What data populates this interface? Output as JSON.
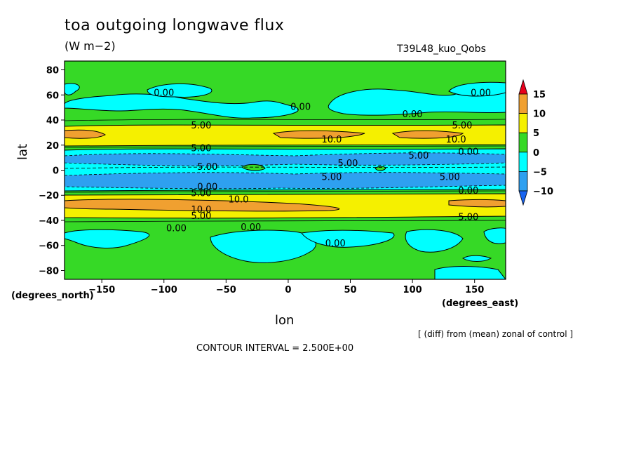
{
  "chart_data": {
    "type": "contour",
    "title": "toa outgoing longwave flux",
    "units": "(W m−2)",
    "run_label": "T39L48_kuo_Qobs",
    "xlabel": "lon",
    "ylabel": "lat",
    "x_unit_label": "(degrees_east)",
    "y_unit_label": "(degrees_north)",
    "note": "[ (diff) from (mean) zonal of control ]",
    "contour_interval_text": "CONTOUR INTERVAL = 2.500E+00",
    "xlim": [
      -180,
      175
    ],
    "ylim": [
      -87,
      87
    ],
    "x_ticks": [
      -150,
      -100,
      -50,
      0,
      50,
      100,
      150
    ],
    "x_tick_labels": [
      "−150",
      "−100",
      "−50",
      "0",
      "50",
      "100",
      "150"
    ],
    "y_ticks": [
      80,
      60,
      40,
      20,
      0,
      -20,
      -40,
      -60,
      -80
    ],
    "y_tick_labels": [
      "80",
      "60",
      "40",
      "20",
      "0",
      "−20",
      "−40",
      "−60",
      "−80"
    ],
    "colorbar": {
      "labels": [
        "15",
        "10",
        "5",
        "0",
        "−5",
        "−10"
      ],
      "bins": [
        {
          "range": "> 15",
          "color": "#e8001c"
        },
        {
          "range": "10 to 15",
          "color": "#f0a030"
        },
        {
          "range": "5 to 10",
          "color": "#f5f000"
        },
        {
          "range": "0 to 5",
          "color": "#36d926"
        },
        {
          "range": "-5 to 0",
          "color": "#00ffff"
        },
        {
          "range": "-10 to -5",
          "color": "#2ea0f0"
        },
        {
          "range": "< -10",
          "color": "#1864f0"
        }
      ]
    },
    "zonal_bands": [
      {
        "lat_range": [
          60,
          87
        ],
        "level": "0 to 5",
        "color": "#36d926"
      },
      {
        "lat_range": [
          38,
          60
        ],
        "level": "mixed 0 to 5 / -5 to 0",
        "color": "#36d926"
      },
      {
        "lat_range": [
          22,
          36
        ],
        "level": "5 to 15",
        "color": "#f5f000"
      },
      {
        "lat_range": [
          12,
          22
        ],
        "level": "0 to 5",
        "color": "#36d926"
      },
      {
        "lat_range": [
          -12,
          12
        ],
        "level": "-10 to 0",
        "color": "#00ffff"
      },
      {
        "lat_range": [
          -22,
          -12
        ],
        "level": "0 to 5",
        "color": "#36d926"
      },
      {
        "lat_range": [
          -36,
          -22
        ],
        "level": "5 to 15",
        "color": "#f5f000"
      },
      {
        "lat_range": [
          -87,
          -40
        ],
        "level": "mixed 0 to 5 / -5 to 0",
        "color": "#36d926"
      }
    ],
    "contour_labels": [
      {
        "text": "0.00",
        "lon": -100,
        "lat": 62
      },
      {
        "text": "0.00",
        "lon": 10,
        "lat": 51
      },
      {
        "text": "0.00",
        "lon": 100,
        "lat": 45
      },
      {
        "text": "0.00",
        "lon": 155,
        "lat": 62
      },
      {
        "text": "5.00",
        "lon": -70,
        "lat": 36
      },
      {
        "text": "5.00",
        "lon": 140,
        "lat": 36
      },
      {
        "text": "10.0",
        "lon": 35,
        "lat": 25
      },
      {
        "text": "10.0",
        "lon": 135,
        "lat": 25
      },
      {
        "text": "5.00",
        "lon": -70,
        "lat": 18
      },
      {
        "text": "0.00",
        "lon": 145,
        "lat": 15
      },
      {
        "text": "5.00",
        "lon": 105,
        "lat": 12
      },
      {
        "text": "5.00",
        "lon": 48,
        "lat": 6
      },
      {
        "text": "5.00",
        "lon": -65,
        "lat": 3
      },
      {
        "text": "5.00",
        "lon": 35,
        "lat": -5
      },
      {
        "text": "5.00",
        "lon": 130,
        "lat": -5
      },
      {
        "text": "0.00",
        "lon": -65,
        "lat": -13
      },
      {
        "text": "5.00",
        "lon": -70,
        "lat": -18
      },
      {
        "text": "0.00",
        "lon": 145,
        "lat": -16
      },
      {
        "text": "10.0",
        "lon": -40,
        "lat": -23
      },
      {
        "text": "10.0",
        "lon": -70,
        "lat": -31
      },
      {
        "text": "5.00",
        "lon": -70,
        "lat": -36
      },
      {
        "text": "5.00",
        "lon": 145,
        "lat": -37
      },
      {
        "text": "0.00",
        "lon": -90,
        "lat": -46
      },
      {
        "text": "0.00",
        "lon": -30,
        "lat": -45
      },
      {
        "text": "0.00",
        "lon": 38,
        "lat": -58
      }
    ]
  }
}
